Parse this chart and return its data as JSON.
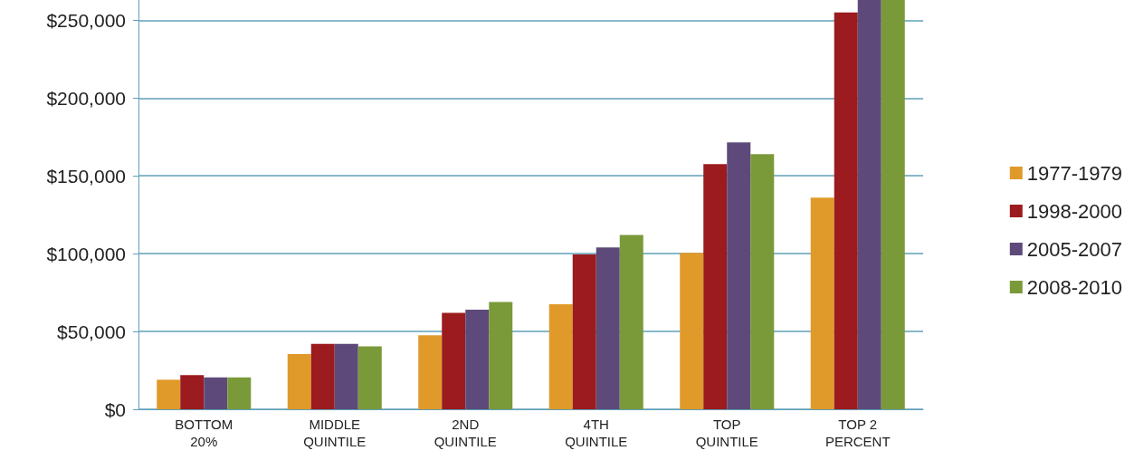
{
  "chart_data": {
    "type": "bar",
    "categories": [
      "BOTTOM\n20%",
      "MIDDLE\nQUINTILE",
      "2ND\nQUINTILE",
      "4TH\nQUINTILE",
      "TOP\nQUINTILE",
      "TOP 2\nPERCENT"
    ],
    "series": [
      {
        "name": "1977-1979",
        "color": "#e09a2a",
        "values": [
          19000,
          35500,
          47500,
          67500,
          100500,
          136000
        ]
      },
      {
        "name": "1998-2000",
        "color": "#9b1b1e",
        "values": [
          22000,
          42000,
          62000,
          99500,
          157500,
          255000
        ]
      },
      {
        "name": "2005-2007",
        "color": "#5e4a7a",
        "values": [
          20500,
          42000,
          64000,
          104000,
          171500,
          263000
        ]
      },
      {
        "name": "2008-2010",
        "color": "#7a9a3a",
        "values": [
          20500,
          40500,
          69000,
          112000,
          164000,
          263000
        ]
      }
    ],
    "ylim": [
      0,
      263000
    ],
    "yticks": [
      {
        "value": 0,
        "label": "$0"
      },
      {
        "value": 50000,
        "label": "$50,000"
      },
      {
        "value": 100000,
        "label": "$100,000"
      },
      {
        "value": 150000,
        "label": "$150,000"
      },
      {
        "value": 200000,
        "label": "$200,000"
      },
      {
        "value": 250000,
        "label": "$250,000"
      }
    ],
    "grid": "y",
    "legend": "right"
  }
}
